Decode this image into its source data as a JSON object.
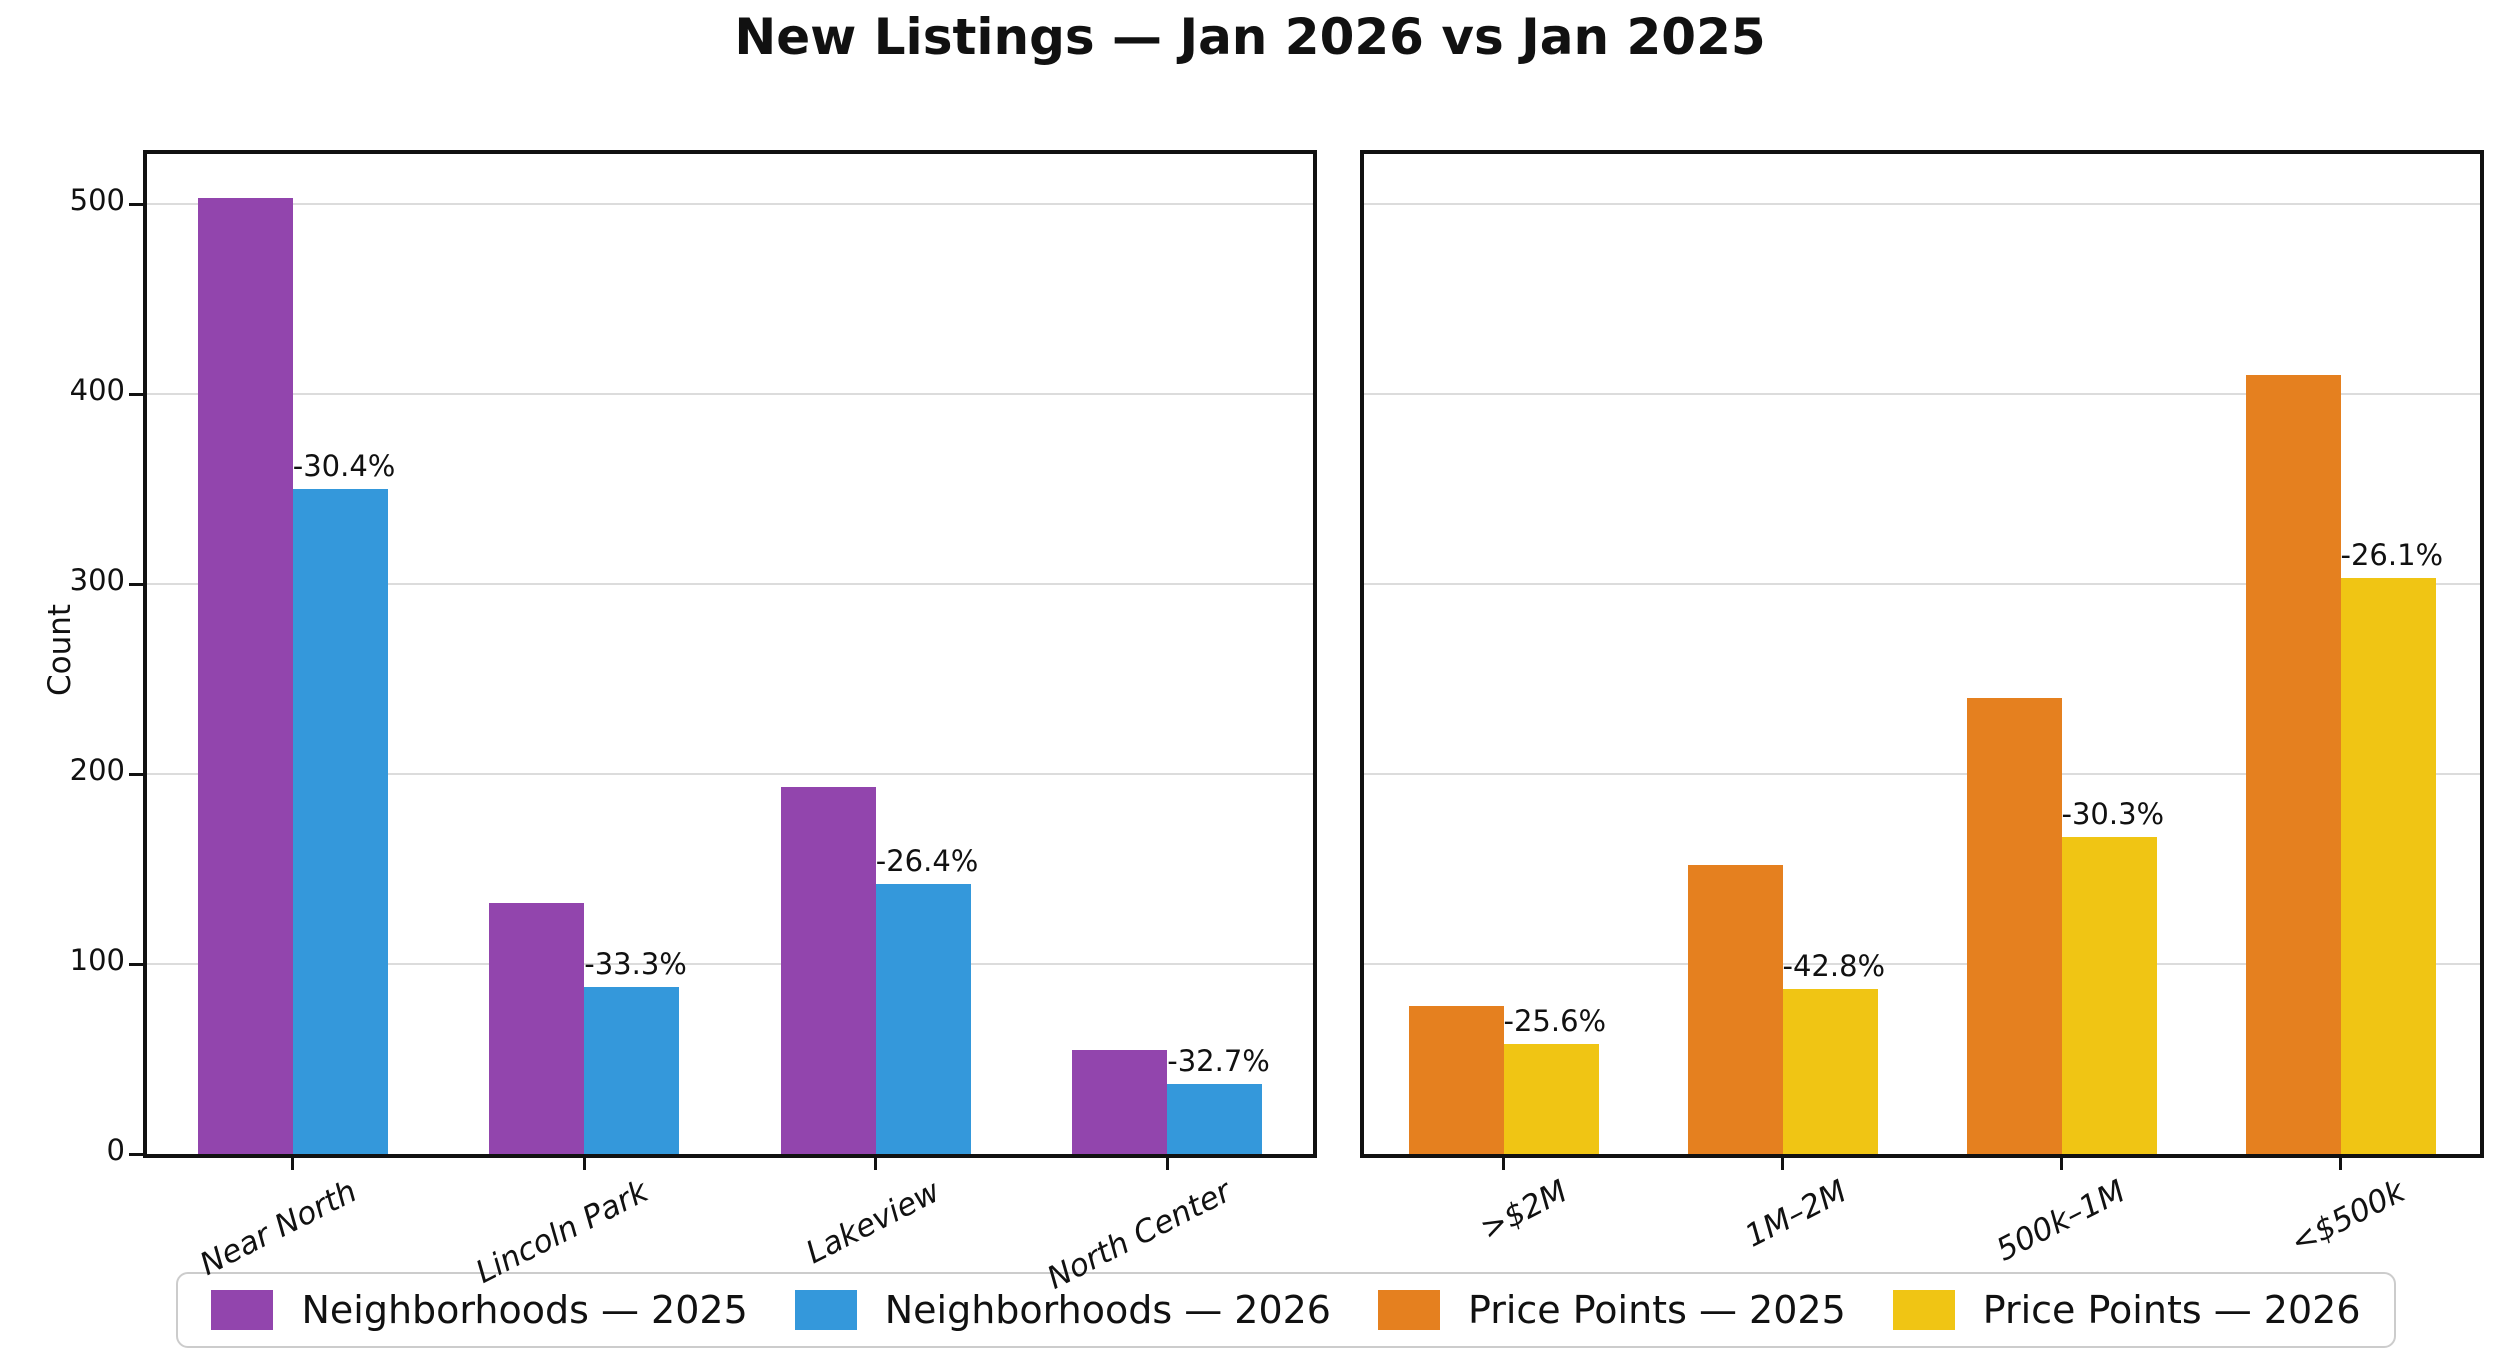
{
  "title": "New Listings — Jan 2026 vs Jan 2025",
  "ylabel": "Count",
  "colors": {
    "purple": "#9245ad",
    "blue": "#3498db",
    "orange": "#e5801f",
    "yellow": "#f0c514",
    "grid": "#dcdcdc",
    "spine": "#111111",
    "legend_border": "#cccccc"
  },
  "chart_data": [
    {
      "type": "bar",
      "panel": "left",
      "categories": [
        "Near North",
        "Lincoln Park",
        "Lakeview",
        "North Center"
      ],
      "series": [
        {
          "name": "Neighborhoods — 2025",
          "color": "#9245ad",
          "values": [
            503,
            132,
            193,
            55
          ]
        },
        {
          "name": "Neighborhoods — 2026",
          "color": "#3498db",
          "values": [
            350,
            88,
            142,
            37
          ]
        }
      ],
      "bar_labels": [
        "-30.4%",
        "-33.3%",
        "-26.4%",
        "-32.7%"
      ],
      "ylabel": "Count",
      "ylim": [
        0,
        526
      ],
      "yticks": [
        0,
        100,
        200,
        300,
        400,
        500
      ],
      "show_ytick_labels": true,
      "grid": true
    },
    {
      "type": "bar",
      "panel": "right",
      "categories": [
        ">$2M",
        "1M–2M",
        "500k–1M",
        "<$500k"
      ],
      "series": [
        {
          "name": "Price Points — 2025",
          "color": "#e5801f",
          "values": [
            78,
            152,
            240,
            410
          ]
        },
        {
          "name": "Price Points — 2026",
          "color": "#f0c514",
          "values": [
            58,
            87,
            167,
            303
          ]
        }
      ],
      "bar_labels": [
        "-25.6%",
        "-42.8%",
        "-30.3%",
        "-26.1%"
      ],
      "ylim": [
        0,
        526
      ],
      "yticks": [
        0,
        100,
        200,
        300,
        400,
        500
      ],
      "show_ytick_labels": false,
      "grid": true
    }
  ],
  "legend": {
    "entries": [
      {
        "label": "Neighborhoods — 2025",
        "color": "#9245ad"
      },
      {
        "label": "Neighborhoods — 2026",
        "color": "#3498db"
      },
      {
        "label": "Price Points — 2025",
        "color": "#e5801f"
      },
      {
        "label": "Price Points — 2026",
        "color": "#f0c514"
      }
    ]
  }
}
